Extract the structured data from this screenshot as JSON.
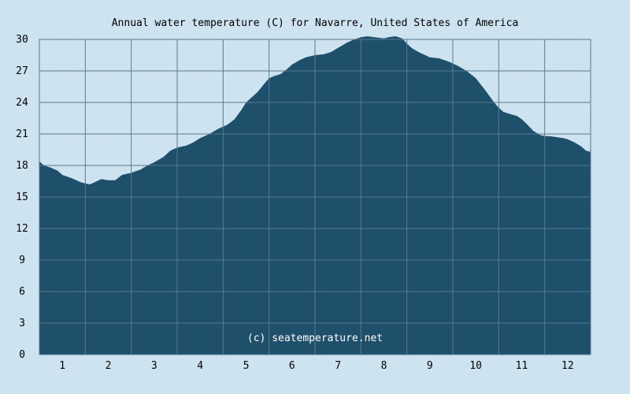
{
  "chart_data": {
    "type": "area",
    "title": "Annual water temperature (C) for Navarre, United States of America",
    "watermark": "(c) seatemperature.net",
    "xlabel": "",
    "ylabel": "",
    "xlim": [
      0.5,
      12.5
    ],
    "ylim": [
      0,
      30
    ],
    "x_ticks": [
      1,
      2,
      3,
      4,
      5,
      6,
      7,
      8,
      9,
      10,
      11,
      12
    ],
    "y_ticks": [
      0,
      3,
      6,
      9,
      12,
      15,
      18,
      21,
      24,
      27,
      30
    ],
    "grid": true,
    "colors": {
      "background": "#cde3ef",
      "area": "#1e4f6b",
      "grid": "#5a7a90"
    },
    "series": [
      {
        "x": [
          0.5,
          0.6,
          0.75,
          0.9,
          1.0,
          1.2,
          1.4,
          1.5,
          1.6,
          1.75,
          1.85,
          2.0,
          2.15,
          2.3,
          2.5,
          2.7,
          2.85,
          3.0,
          3.2,
          3.35,
          3.5,
          3.7,
          3.85,
          4.0,
          4.2,
          4.4,
          4.6,
          4.75,
          4.9,
          5.0,
          5.1,
          5.25,
          5.4,
          5.5,
          5.6,
          5.75,
          5.9,
          6.0,
          6.15,
          6.3,
          6.5,
          6.7,
          6.85,
          7.0,
          7.2,
          7.35,
          7.5,
          7.65,
          7.8,
          8.0,
          8.1,
          8.25,
          8.4,
          8.5,
          8.6,
          8.75,
          8.9,
          9.0,
          9.2,
          9.4,
          9.6,
          9.8,
          10.0,
          10.2,
          10.4,
          10.5,
          10.6,
          10.75,
          10.9,
          11.0,
          11.1,
          11.25,
          11.4,
          11.5,
          11.6,
          11.75,
          11.9,
          12.0,
          12.15,
          12.3,
          12.4,
          12.5
        ],
        "values": [
          18.4,
          18.0,
          17.8,
          17.5,
          17.1,
          16.8,
          16.4,
          16.3,
          16.2,
          16.5,
          16.7,
          16.6,
          16.6,
          17.1,
          17.3,
          17.6,
          18.0,
          18.3,
          18.8,
          19.4,
          19.7,
          19.9,
          20.2,
          20.6,
          21.0,
          21.5,
          21.9,
          22.4,
          23.3,
          24.0,
          24.4,
          25.0,
          25.8,
          26.3,
          26.5,
          26.7,
          27.2,
          27.6,
          28.0,
          28.3,
          28.5,
          28.6,
          28.8,
          29.2,
          29.7,
          30.0,
          30.2,
          30.3,
          30.2,
          30.1,
          30.2,
          30.3,
          30.1,
          29.6,
          29.2,
          28.8,
          28.5,
          28.3,
          28.2,
          27.9,
          27.5,
          27.0,
          26.3,
          25.2,
          24.0,
          23.5,
          23.1,
          22.9,
          22.7,
          22.4,
          22.0,
          21.3,
          20.9,
          20.8,
          20.8,
          20.7,
          20.6,
          20.5,
          20.2,
          19.8,
          19.4,
          19.3
        ]
      }
    ]
  }
}
